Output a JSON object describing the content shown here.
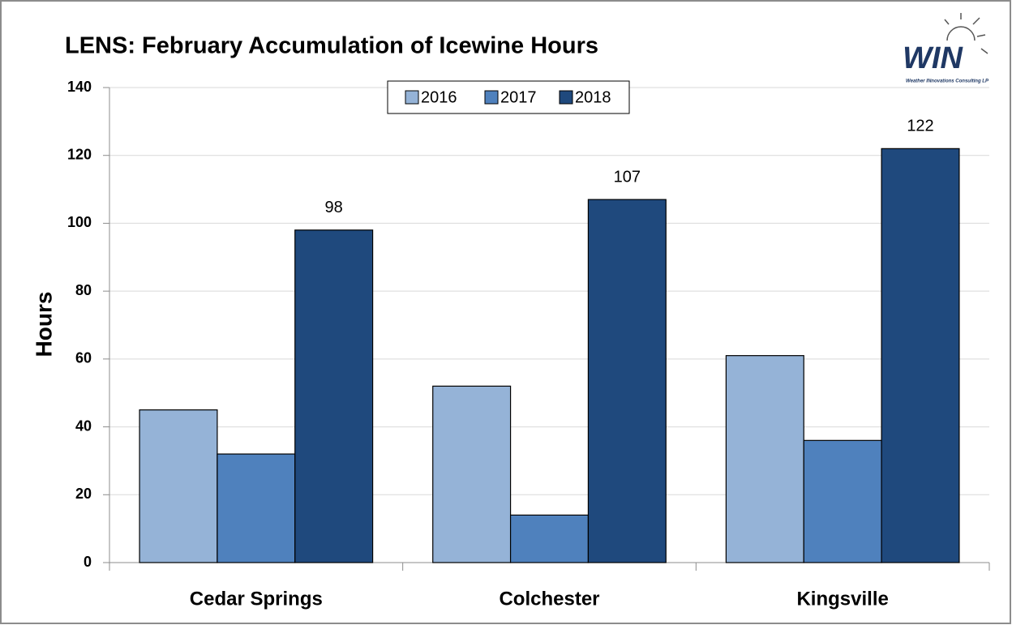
{
  "chart_data": {
    "type": "bar",
    "title": "LENS: February Accumulation of Icewine Hours",
    "y_label": "Hours",
    "logo": {
      "text": "WIN",
      "tagline": "Weather INnovations Consulting LP"
    },
    "categories": [
      "Cedar Springs",
      "Colchester",
      "Kingsville"
    ],
    "series": [
      {
        "name": "2016",
        "color": "#95b3d7",
        "values": [
          45,
          52,
          61
        ]
      },
      {
        "name": "2017",
        "color": "#4f81bd",
        "values": [
          32,
          14,
          36
        ]
      },
      {
        "name": "2018",
        "color": "#1f497d",
        "values": [
          98,
          107,
          122
        ],
        "data_labels": true
      }
    ],
    "ylim": [
      0,
      140
    ],
    "yticks": [
      0,
      20,
      40,
      60,
      80,
      100,
      120,
      140
    ],
    "grid": true,
    "legend": "top"
  }
}
